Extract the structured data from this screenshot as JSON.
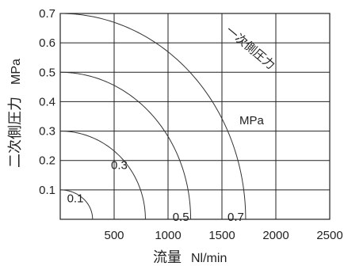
{
  "chart_data": {
    "type": "line",
    "title": "",
    "xlabel": "流量",
    "xunit": "Nl/min",
    "ylabel": "二次側圧力",
    "yunit": "MPa",
    "xlim": [
      0,
      2500
    ],
    "ylim": [
      0,
      0.7
    ],
    "xticks": [
      500,
      1000,
      1500,
      2000,
      2500
    ],
    "xtick_labels": [
      "500",
      "1000",
      "1500",
      "2000",
      "2500"
    ],
    "yticks": [
      0.1,
      0.2,
      0.3,
      0.4,
      0.5,
      0.6,
      0.7
    ],
    "ytick_labels": [
      "0.1",
      "0.2",
      "0.3",
      "0.4",
      "0.5",
      "0.6",
      "0.7"
    ],
    "grid": true,
    "legend_title": "一次側圧力",
    "legend_unit": "MPa",
    "series": [
      {
        "name": "0.1",
        "initial_pressure": 0.1,
        "max_flow": 300
      },
      {
        "name": "0.3",
        "initial_pressure": 0.3,
        "max_flow": 790
      },
      {
        "name": "0.5",
        "initial_pressure": 0.5,
        "max_flow": 1210
      },
      {
        "name": "0.7",
        "initial_pressure": 0.7,
        "max_flow": 1720
      }
    ]
  }
}
